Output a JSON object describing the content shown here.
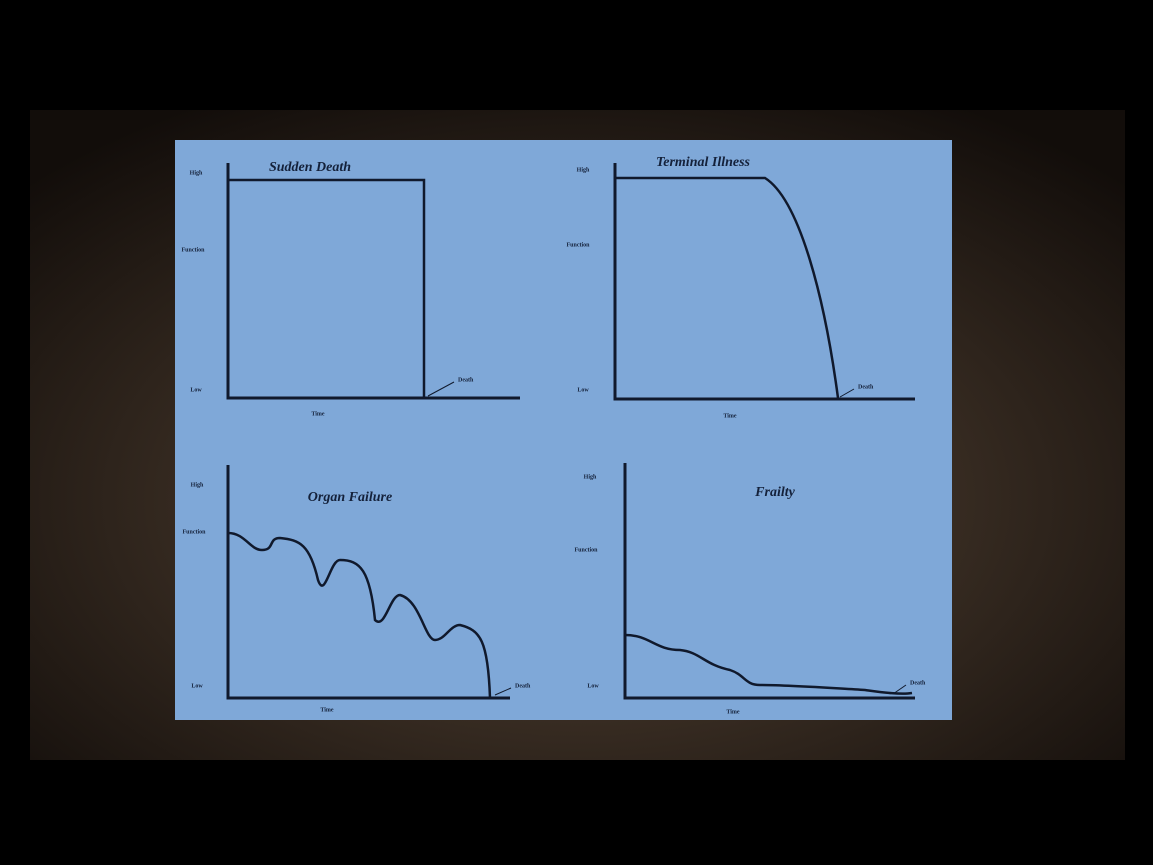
{
  "panels": [
    {
      "title": "Sudden Death",
      "y_labels": {
        "high": "High",
        "mid": "Function",
        "low": "Low"
      },
      "x_label": "Time",
      "annotation": "Death"
    },
    {
      "title": "Terminal Illness",
      "y_labels": {
        "high": "High",
        "mid": "Function",
        "low": "Low"
      },
      "x_label": "Time",
      "annotation": "Death"
    },
    {
      "title": "Organ Failure",
      "y_labels": {
        "high": "High",
        "mid": "Function",
        "low": "Low"
      },
      "x_label": "Time",
      "annotation": "Death"
    },
    {
      "title": "Frailty",
      "y_labels": {
        "high": "High",
        "mid": "Function",
        "low": "Low"
      },
      "x_label": "Time",
      "annotation": "Death"
    }
  ]
}
